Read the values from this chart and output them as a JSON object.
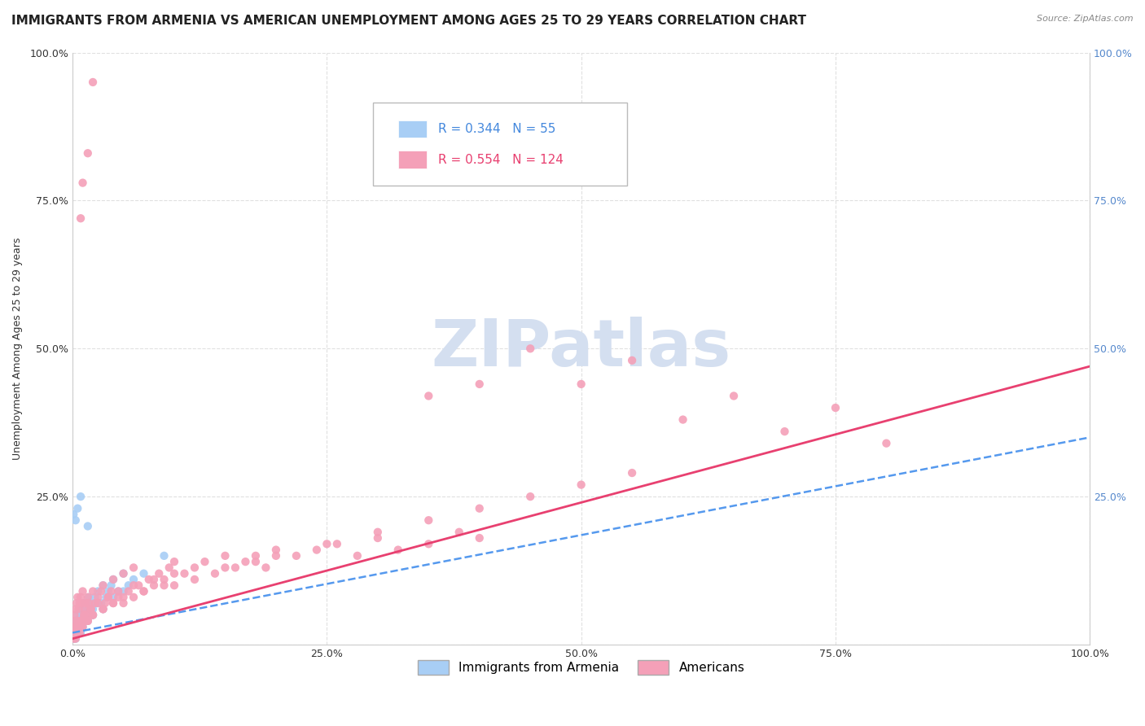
{
  "title": "IMMIGRANTS FROM ARMENIA VS AMERICAN UNEMPLOYMENT AMONG AGES 25 TO 29 YEARS CORRELATION CHART",
  "source": "Source: ZipAtlas.com",
  "ylabel": "Unemployment Among Ages 25 to 29 years",
  "watermark": "ZIPatlas",
  "legend_labels": [
    "Immigrants from Armenia",
    "Americans"
  ],
  "series": [
    {
      "name": "Immigrants from Armenia",
      "R": 0.344,
      "N": 55,
      "color": "#a8cef5",
      "line_color": "#5599ee",
      "line_style": "--",
      "x": [
        0.001,
        0.002,
        0.003,
        0.003,
        0.004,
        0.005,
        0.006,
        0.007,
        0.008,
        0.009,
        0.01,
        0.011,
        0.012,
        0.013,
        0.015,
        0.016,
        0.018,
        0.02,
        0.022,
        0.025,
        0.028,
        0.03,
        0.033,
        0.035,
        0.038,
        0.04,
        0.045,
        0.05,
        0.055,
        0.06,
        0.001,
        0.002,
        0.003,
        0.004,
        0.005,
        0.006,
        0.007,
        0.008,
        0.009,
        0.01,
        0.012,
        0.015,
        0.018,
        0.02,
        0.025,
        0.03,
        0.04,
        0.05,
        0.07,
        0.09,
        0.001,
        0.003,
        0.005,
        0.008,
        0.015
      ],
      "y": [
        0.02,
        0.03,
        0.02,
        0.04,
        0.03,
        0.05,
        0.04,
        0.03,
        0.05,
        0.04,
        0.06,
        0.05,
        0.07,
        0.06,
        0.05,
        0.08,
        0.07,
        0.06,
        0.08,
        0.09,
        0.07,
        0.1,
        0.08,
        0.09,
        0.1,
        0.11,
        0.09,
        0.12,
        0.1,
        0.11,
        0.01,
        0.02,
        0.01,
        0.03,
        0.02,
        0.04,
        0.03,
        0.02,
        0.04,
        0.03,
        0.05,
        0.04,
        0.06,
        0.05,
        0.07,
        0.06,
        0.08,
        0.09,
        0.12,
        0.15,
        0.22,
        0.21,
        0.23,
        0.25,
        0.2
      ]
    },
    {
      "name": "Americans",
      "R": 0.554,
      "N": 124,
      "color": "#f4a0b8",
      "line_color": "#e84070",
      "line_style": "-",
      "x": [
        0.001,
        0.001,
        0.002,
        0.002,
        0.003,
        0.003,
        0.004,
        0.004,
        0.005,
        0.005,
        0.006,
        0.006,
        0.007,
        0.007,
        0.008,
        0.008,
        0.009,
        0.009,
        0.01,
        0.01,
        0.011,
        0.012,
        0.013,
        0.014,
        0.015,
        0.015,
        0.016,
        0.018,
        0.02,
        0.02,
        0.022,
        0.025,
        0.028,
        0.03,
        0.03,
        0.032,
        0.035,
        0.038,
        0.04,
        0.04,
        0.045,
        0.05,
        0.05,
        0.055,
        0.06,
        0.06,
        0.065,
        0.07,
        0.075,
        0.08,
        0.085,
        0.09,
        0.095,
        0.1,
        0.1,
        0.11,
        0.12,
        0.13,
        0.14,
        0.15,
        0.16,
        0.17,
        0.18,
        0.19,
        0.2,
        0.22,
        0.24,
        0.26,
        0.28,
        0.3,
        0.32,
        0.35,
        0.38,
        0.4,
        0.001,
        0.002,
        0.003,
        0.004,
        0.005,
        0.006,
        0.007,
        0.008,
        0.009,
        0.01,
        0.012,
        0.015,
        0.018,
        0.02,
        0.025,
        0.03,
        0.035,
        0.04,
        0.045,
        0.05,
        0.06,
        0.07,
        0.08,
        0.09,
        0.1,
        0.12,
        0.15,
        0.18,
        0.2,
        0.25,
        0.3,
        0.35,
        0.4,
        0.45,
        0.5,
        0.55,
        0.35,
        0.4,
        0.45,
        0.5,
        0.55,
        0.6,
        0.65,
        0.7,
        0.75,
        0.8,
        0.008,
        0.01,
        0.015,
        0.02
      ],
      "y": [
        0.02,
        0.04,
        0.03,
        0.05,
        0.02,
        0.06,
        0.03,
        0.07,
        0.04,
        0.08,
        0.03,
        0.06,
        0.04,
        0.07,
        0.03,
        0.08,
        0.04,
        0.07,
        0.03,
        0.09,
        0.05,
        0.06,
        0.07,
        0.05,
        0.04,
        0.08,
        0.07,
        0.06,
        0.05,
        0.09,
        0.07,
        0.08,
        0.09,
        0.06,
        0.1,
        0.07,
        0.08,
        0.09,
        0.07,
        0.11,
        0.08,
        0.07,
        0.12,
        0.09,
        0.08,
        0.13,
        0.1,
        0.09,
        0.11,
        0.1,
        0.12,
        0.11,
        0.13,
        0.1,
        0.14,
        0.12,
        0.13,
        0.14,
        0.12,
        0.15,
        0.13,
        0.14,
        0.15,
        0.13,
        0.16,
        0.15,
        0.16,
        0.17,
        0.15,
        0.18,
        0.16,
        0.17,
        0.19,
        0.18,
        0.01,
        0.02,
        0.01,
        0.03,
        0.02,
        0.03,
        0.02,
        0.04,
        0.03,
        0.04,
        0.05,
        0.04,
        0.06,
        0.05,
        0.07,
        0.06,
        0.08,
        0.07,
        0.09,
        0.08,
        0.1,
        0.09,
        0.11,
        0.1,
        0.12,
        0.11,
        0.13,
        0.14,
        0.15,
        0.17,
        0.19,
        0.21,
        0.23,
        0.25,
        0.27,
        0.29,
        0.42,
        0.44,
        0.5,
        0.44,
        0.48,
        0.38,
        0.42,
        0.36,
        0.4,
        0.34,
        0.72,
        0.78,
        0.83,
        0.95
      ]
    }
  ],
  "blue_line_x0": 0.0,
  "blue_line_y0": 0.02,
  "blue_line_x1": 1.0,
  "blue_line_y1": 0.35,
  "pink_line_x0": 0.0,
  "pink_line_y0": 0.01,
  "pink_line_x1": 1.0,
  "pink_line_y1": 0.47,
  "xlim": [
    0.0,
    1.0
  ],
  "ylim": [
    0.0,
    1.0
  ],
  "xticks": [
    0.0,
    0.25,
    0.5,
    0.75,
    1.0
  ],
  "xticklabels": [
    "0.0%",
    "25.0%",
    "50.0%",
    "75.0%",
    "100.0%"
  ],
  "yticks": [
    0.0,
    0.25,
    0.5,
    0.75,
    1.0
  ],
  "yticklabels": [
    "",
    "25.0%",
    "50.0%",
    "75.0%",
    "100.0%"
  ],
  "background_color": "#ffffff",
  "grid_color": "#e0e0e0",
  "grid_style": "--",
  "watermark_color": "#d4dff0",
  "title_fontsize": 11,
  "axis_fontsize": 9,
  "legend_fontsize": 11
}
